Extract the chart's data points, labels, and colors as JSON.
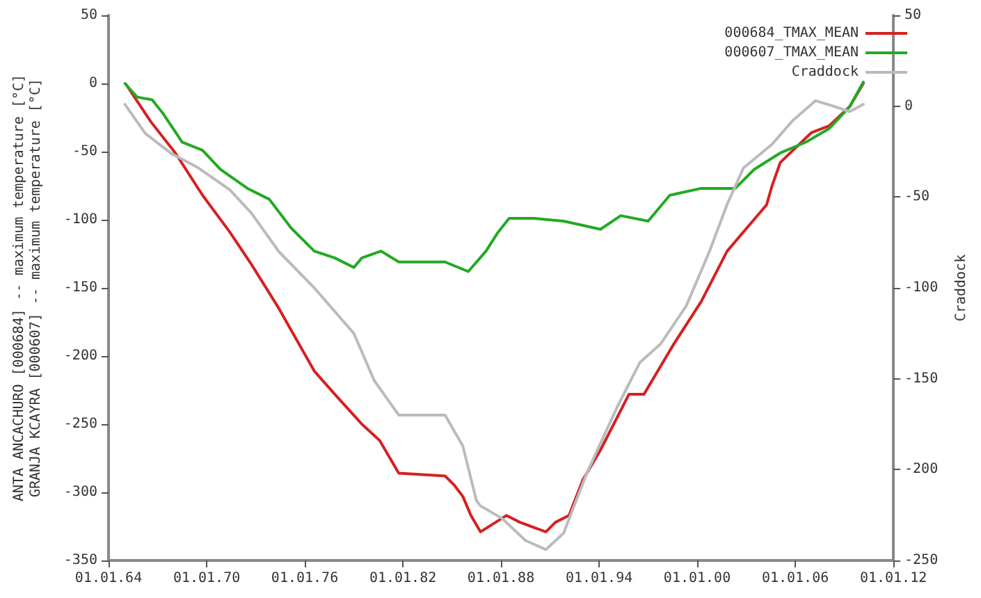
{
  "chart_data": {
    "type": "line",
    "ylabel": "ANTA ANCACHURO [000684] -- maximum temperature [°C]\nGRANJA KCAYRA [000607] -- maximum temperature [°C]",
    "y2label": "Craddock",
    "xlim": [
      "1964-01-01",
      "2012-01-01"
    ],
    "xticks": [
      {
        "value": "1964-01-01",
        "label": "01.01.64"
      },
      {
        "value": "1970-01-01",
        "label": "01.01.70"
      },
      {
        "value": "1976-01-01",
        "label": "01.01.76"
      },
      {
        "value": "1982-01-01",
        "label": "01.01.82"
      },
      {
        "value": "1988-01-01",
        "label": "01.01.88"
      },
      {
        "value": "1994-01-01",
        "label": "01.01.94"
      },
      {
        "value": "2000-01-01",
        "label": "01.01.00"
      },
      {
        "value": "2006-01-01",
        "label": "01.01.06"
      },
      {
        "value": "2012-01-01",
        "label": "01.01.12"
      }
    ],
    "ylim": [
      -350,
      50
    ],
    "yticks": [
      -350,
      -300,
      -250,
      -200,
      -150,
      -100,
      -50,
      0,
      50
    ],
    "y2lim": [
      -250,
      50
    ],
    "y2ticks": [
      -250,
      -200,
      -150,
      -100,
      -50,
      0,
      50
    ],
    "legend": "top right",
    "grid": false,
    "marker": "none",
    "line_style": "solid",
    "series": [
      {
        "name": "000684_TMAX_MEAN",
        "color": "#d62020",
        "x": [
          "1965-02",
          "1966-08",
          "1968-02",
          "1969-10",
          "1971-06",
          "1972-10",
          "1974-06",
          "1976-08",
          "1977-11",
          "1979-07",
          "1980-08",
          "1981-10",
          "1984-08",
          "1985-03",
          "1985-09",
          "1986-03",
          "1986-10",
          "1988-05",
          "1989-03",
          "1990-10",
          "1991-05",
          "1992-03",
          "1993-01",
          "1994-02",
          "1995-11",
          "1996-10",
          "1998-08",
          "2000-04",
          "2001-11",
          "2004-04",
          "2004-08",
          "2005-02",
          "2007-01",
          "2008-02",
          "2009-05",
          "2010-03"
        ],
        "values": [
          -1,
          -28,
          -51,
          -82,
          -109,
          -133,
          -165,
          -211,
          -228,
          -250,
          -262,
          -286,
          -288,
          -295,
          -303,
          -317,
          -329,
          -317,
          -322,
          -329,
          -322,
          -317,
          -291,
          -269,
          -228,
          -228,
          -191,
          -160,
          -123,
          -89,
          -75,
          -58,
          -36,
          -31,
          -17,
          0
        ]
      },
      {
        "name": "000607_TMAX_MEAN",
        "color": "#22aa22",
        "x": [
          "1965-01",
          "1965-10",
          "1966-09",
          "1967-05",
          "1968-07",
          "1969-10",
          "1970-11",
          "1972-07",
          "1973-11",
          "1975-03",
          "1976-08",
          "1977-11",
          "1979-01",
          "1979-07",
          "1980-09",
          "1981-10",
          "1984-08",
          "1986-01",
          "1987-02",
          "1987-11",
          "1988-07",
          "1990-01",
          "1991-11",
          "1994-02",
          "1995-05",
          "1997-01",
          "1998-05",
          "2000-04",
          "2001-04",
          "2002-05",
          "2003-07",
          "2005-02",
          "2006-09",
          "2008-02",
          "2009-05",
          "2010-03"
        ],
        "values": [
          0,
          -10,
          -12,
          -22,
          -43,
          -49,
          -63,
          -77,
          -85,
          -106,
          -123,
          -128,
          -135,
          -128,
          -123,
          -131,
          -131,
          -138,
          -123,
          -109,
          -99,
          -99,
          -101,
          -107,
          -97,
          -101,
          -82,
          -77,
          -77,
          -77,
          -63,
          -51,
          -43,
          -33,
          -17,
          1
        ]
      },
      {
        "name": "Craddock",
        "color": "#bbbbbb",
        "axis": "y2",
        "x": [
          "1965-01",
          "1966-04",
          "1967-11",
          "1969-07",
          "1971-06",
          "1972-10",
          "1974-06",
          "1976-08",
          "1979-01",
          "1980-04",
          "1981-10",
          "1984-08",
          "1985-09",
          "1986-07",
          "1986-10",
          "1988-02",
          "1989-07",
          "1990-10",
          "1991-11",
          "1993-04",
          "1995-02",
          "1996-07",
          "1997-10",
          "1999-05",
          "2000-10",
          "2001-11",
          "2002-11",
          "2004-08",
          "2005-11",
          "2007-04",
          "2008-05",
          "2009-05",
          "2010-03"
        ],
        "values": [
          1,
          -15,
          -26,
          -34,
          -46,
          -59,
          -80,
          -100,
          -125,
          -151,
          -170,
          -170,
          -187,
          -217,
          -220,
          -227,
          -239,
          -244,
          -235,
          -202,
          -166,
          -141,
          -131,
          -110,
          -80,
          -54,
          -34,
          -21,
          -8,
          3,
          0,
          -3,
          1
        ]
      }
    ]
  }
}
